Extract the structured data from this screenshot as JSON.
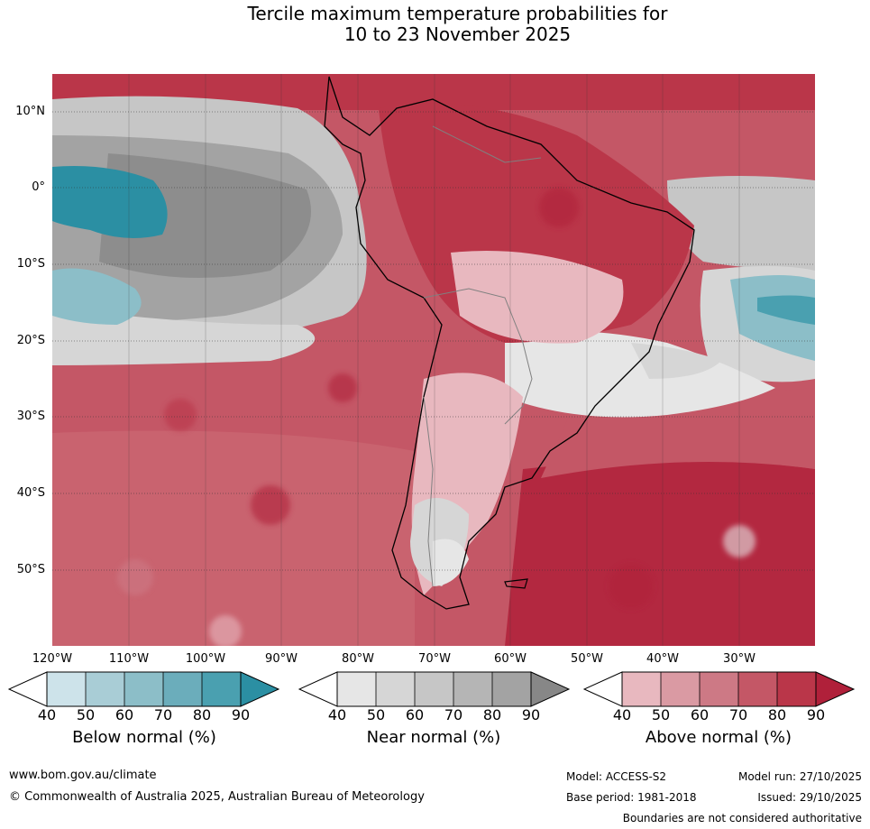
{
  "title_line1": "Tercile maximum temperature probabilities for",
  "title_line2": "10 to 23 November 2025",
  "lat_labels": [
    "10°N",
    "0°",
    "10°S",
    "20°S",
    "30°S",
    "40°S",
    "50°S"
  ],
  "lon_labels": [
    "120°W",
    "110°W",
    "100°W",
    "90°W",
    "80°W",
    "70°W",
    "60°W",
    "50°W",
    "40°W",
    "30°W"
  ],
  "colorbars": [
    {
      "title": "Below normal (%)",
      "ticks": [
        "40",
        "50",
        "60",
        "70",
        "80",
        "90"
      ],
      "colors": [
        "#ffffff",
        "#cde3ea",
        "#a9cdd6",
        "#8cbec8",
        "#6badbb",
        "#4aa0b0",
        "#2b8fa3"
      ]
    },
    {
      "title": "Near normal (%)",
      "ticks": [
        "40",
        "50",
        "60",
        "70",
        "80",
        "90"
      ],
      "colors": [
        "#ffffff",
        "#e6e6e6",
        "#d6d6d6",
        "#c6c6c6",
        "#b5b5b5",
        "#a3a3a3",
        "#878787"
      ]
    },
    {
      "title": "Above normal (%)",
      "ticks": [
        "40",
        "50",
        "60",
        "70",
        "80",
        "90"
      ],
      "colors": [
        "#ffffff",
        "#e8b8bf",
        "#da9aa3",
        "#cd7985",
        "#c45766",
        "#ba3649",
        "#b0203a"
      ]
    }
  ],
  "footer": {
    "website": "www.bom.gov.au/climate",
    "copyright": "© Commonwealth of Australia 2025, Australian Bureau of Meteorology",
    "model": "Model: ACCESS-S2",
    "model_run": "Model run: 27/10/2025",
    "base_period": "Base period: 1981-2018",
    "issued": "Issued: 29/10/2025",
    "disclaimer": "Boundaries are not considered authoritative"
  }
}
